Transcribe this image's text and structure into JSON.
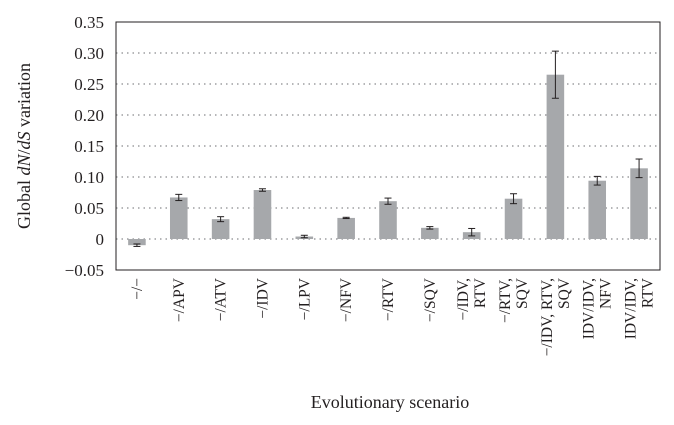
{
  "chart_data": {
    "type": "bar",
    "ylabel_parts": [
      {
        "text": "Global ",
        "italic": false
      },
      {
        "text": "dN",
        "italic": true
      },
      {
        "text": "/",
        "italic": false
      },
      {
        "text": "dS",
        "italic": true
      },
      {
        "text": " variation",
        "italic": false
      }
    ],
    "xlabel": "Evolutionary scenario",
    "ylim": [
      -0.05,
      0.35
    ],
    "yticks": [
      "0.35",
      "0.30",
      "0.25",
      "0.20",
      "0.15",
      "0.10",
      "0.05",
      "0",
      "−0.05"
    ],
    "ytick_values": [
      0.35,
      0.3,
      0.25,
      0.2,
      0.15,
      0.1,
      0.05,
      0,
      -0.05
    ],
    "grid": "horizontal-dotted",
    "bar_color": "#a6a8ab",
    "categories": [
      [
        "−/−"
      ],
      [
        "−/APV"
      ],
      [
        "−/ATV"
      ],
      [
        "−/IDV"
      ],
      [
        "−/LPV"
      ],
      [
        "−/NFV"
      ],
      [
        "−/RTV"
      ],
      [
        "−/SQV"
      ],
      [
        "−/IDV,",
        "RTV"
      ],
      [
        "−/RTV,",
        "SQV"
      ],
      [
        "−/IDV, RTV,",
        "SQV"
      ],
      [
        "IDV/IDV,",
        "NFV"
      ],
      [
        "IDV/IDV,",
        "RTV"
      ]
    ],
    "values": [
      -0.01,
      0.067,
      0.032,
      0.079,
      0.004,
      0.034,
      0.061,
      0.018,
      0.011,
      0.065,
      0.265,
      0.094,
      0.114
    ],
    "errors": [
      0.002,
      0.005,
      0.004,
      0.002,
      0.002,
      0.001,
      0.005,
      0.002,
      0.006,
      0.008,
      0.038,
      0.007,
      0.015
    ]
  }
}
